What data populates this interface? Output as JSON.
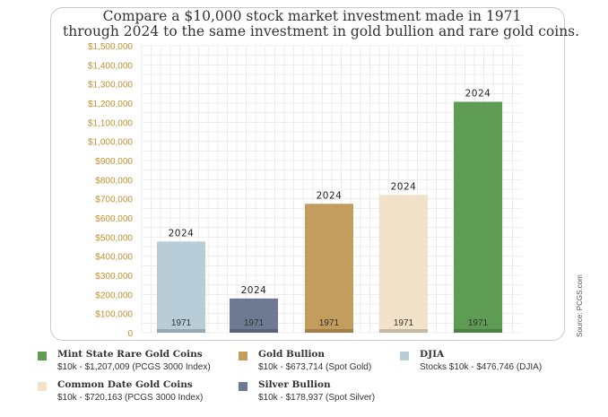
{
  "chart_data": {
    "type": "bar",
    "title_lines": [
      "Compare a $10,000 stock market investment made in 1971",
      "through 2024 to the same investment in gold bullion and rare gold coins."
    ],
    "ylim": [
      0,
      1500000
    ],
    "y_ticks": [
      0,
      100000,
      200000,
      300000,
      400000,
      500000,
      600000,
      700000,
      800000,
      900000,
      1000000,
      1100000,
      1200000,
      1300000,
      1400000,
      1500000
    ],
    "y_tick_labels": [
      "0",
      "$100,000",
      "$200,000",
      "$300,000",
      "$400,000",
      "$500,000",
      "$600,000",
      "$700,000",
      "$800,000",
      "$900,000",
      "$1,000,000",
      "$1,100,000",
      "$1,200,000",
      "$1,300,000",
      "$1,400,000",
      "$1,500,000"
    ],
    "start_label": "1971",
    "end_label": "2024",
    "start_value": 10000,
    "grid": true,
    "series": [
      {
        "name": "DJIA",
        "value": 476746,
        "color": "#b9cdd8"
      },
      {
        "name": "Silver Bullion",
        "value": 178937,
        "color": "#6d7a91"
      },
      {
        "name": "Gold Bullion",
        "value": 673714,
        "color": "#c29d5e"
      },
      {
        "name": "Common Date Gold Coins",
        "value": 720163,
        "color": "#f1e2c9"
      },
      {
        "name": "Mint State Rare Gold Coins",
        "value": 1207009,
        "color": "#5e9b53"
      }
    ]
  },
  "legend": [
    {
      "name": "Mint State Rare Gold Coins",
      "desc": "$10k - $1,207,009 (PCGS 3000 Index)",
      "color": "#5e9b53"
    },
    {
      "name": "Gold Bullion",
      "desc": "$10k - $673,714 (Spot Gold)",
      "color": "#c29d5e"
    },
    {
      "name": "DJIA",
      "desc": "Stocks $10k - $476,746 (DJIA)",
      "color": "#b9cdd8"
    },
    {
      "name": "Common Date Gold Coins",
      "desc": "$10k - $720,163 (PCGS 3000 Index)",
      "color": "#f1e2c9"
    },
    {
      "name": "Silver Bullion",
      "desc": "$10k - $178,937 (Spot Silver)",
      "color": "#6d7a91"
    }
  ],
  "colors": {
    "axis_label": "#c0902f",
    "grid": "#e8e8e8",
    "base": "#d8d8d8"
  },
  "source": "Source: PCGS.com"
}
